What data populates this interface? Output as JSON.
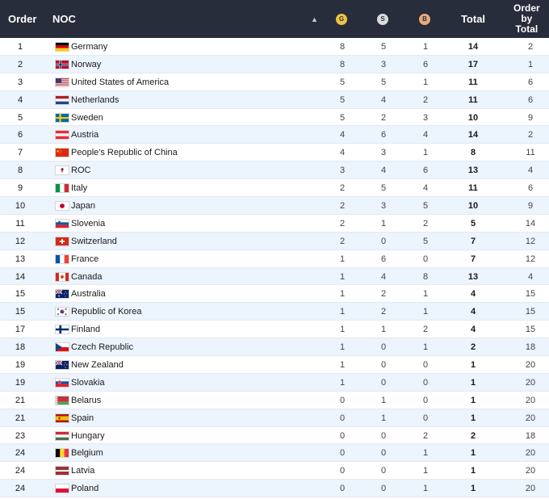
{
  "header": {
    "order": "Order",
    "noc": "NOC",
    "sort_icon": "sort-arrows-icon",
    "gold": "G",
    "silver": "S",
    "bronze": "B",
    "total": "Total",
    "order_by_total_lines": [
      "Order",
      "by",
      "Total"
    ]
  },
  "rows": [
    {
      "order": "1",
      "noc": "Germany",
      "flag": "DE",
      "g": "8",
      "s": "5",
      "b": "1",
      "total": "14",
      "obt": "2"
    },
    {
      "order": "2",
      "noc": "Norway",
      "flag": "NO",
      "g": "8",
      "s": "3",
      "b": "6",
      "total": "17",
      "obt": "1"
    },
    {
      "order": "3",
      "noc": "United States of America",
      "flag": "US",
      "g": "5",
      "s": "5",
      "b": "1",
      "total": "11",
      "obt": "6"
    },
    {
      "order": "4",
      "noc": "Netherlands",
      "flag": "NL",
      "g": "5",
      "s": "4",
      "b": "2",
      "total": "11",
      "obt": "6"
    },
    {
      "order": "5",
      "noc": "Sweden",
      "flag": "SE",
      "g": "5",
      "s": "2",
      "b": "3",
      "total": "10",
      "obt": "9"
    },
    {
      "order": "6",
      "noc": "Austria",
      "flag": "AT",
      "g": "4",
      "s": "6",
      "b": "4",
      "total": "14",
      "obt": "2"
    },
    {
      "order": "7",
      "noc": "People's Republic of China",
      "flag": "CN",
      "g": "4",
      "s": "3",
      "b": "1",
      "total": "8",
      "obt": "11"
    },
    {
      "order": "8",
      "noc": "ROC",
      "flag": "ROC",
      "g": "3",
      "s": "4",
      "b": "6",
      "total": "13",
      "obt": "4"
    },
    {
      "order": "9",
      "noc": "Italy",
      "flag": "IT",
      "g": "2",
      "s": "5",
      "b": "4",
      "total": "11",
      "obt": "6"
    },
    {
      "order": "10",
      "noc": "Japan",
      "flag": "JP",
      "g": "2",
      "s": "3",
      "b": "5",
      "total": "10",
      "obt": "9"
    },
    {
      "order": "11",
      "noc": "Slovenia",
      "flag": "SI",
      "g": "2",
      "s": "1",
      "b": "2",
      "total": "5",
      "obt": "14"
    },
    {
      "order": "12",
      "noc": "Switzerland",
      "flag": "CH",
      "g": "2",
      "s": "0",
      "b": "5",
      "total": "7",
      "obt": "12"
    },
    {
      "order": "13",
      "noc": "France",
      "flag": "FR",
      "g": "1",
      "s": "6",
      "b": "0",
      "total": "7",
      "obt": "12"
    },
    {
      "order": "14",
      "noc": "Canada",
      "flag": "CA",
      "g": "1",
      "s": "4",
      "b": "8",
      "total": "13",
      "obt": "4"
    },
    {
      "order": "15",
      "noc": "Australia",
      "flag": "AU",
      "g": "1",
      "s": "2",
      "b": "1",
      "total": "4",
      "obt": "15"
    },
    {
      "order": "15",
      "noc": "Republic of Korea",
      "flag": "KR",
      "g": "1",
      "s": "2",
      "b": "1",
      "total": "4",
      "obt": "15"
    },
    {
      "order": "17",
      "noc": "Finland",
      "flag": "FI",
      "g": "1",
      "s": "1",
      "b": "2",
      "total": "4",
      "obt": "15"
    },
    {
      "order": "18",
      "noc": "Czech Republic",
      "flag": "CZ",
      "g": "1",
      "s": "0",
      "b": "1",
      "total": "2",
      "obt": "18"
    },
    {
      "order": "19",
      "noc": "New Zealand",
      "flag": "NZ",
      "g": "1",
      "s": "0",
      "b": "0",
      "total": "1",
      "obt": "20"
    },
    {
      "order": "19",
      "noc": "Slovakia",
      "flag": "SK",
      "g": "1",
      "s": "0",
      "b": "0",
      "total": "1",
      "obt": "20"
    },
    {
      "order": "21",
      "noc": "Belarus",
      "flag": "BY",
      "g": "0",
      "s": "1",
      "b": "0",
      "total": "1",
      "obt": "20"
    },
    {
      "order": "21",
      "noc": "Spain",
      "flag": "ES",
      "g": "0",
      "s": "1",
      "b": "0",
      "total": "1",
      "obt": "20"
    },
    {
      "order": "23",
      "noc": "Hungary",
      "flag": "HU",
      "g": "0",
      "s": "0",
      "b": "2",
      "total": "2",
      "obt": "18"
    },
    {
      "order": "24",
      "noc": "Belgium",
      "flag": "BE",
      "g": "0",
      "s": "0",
      "b": "1",
      "total": "1",
      "obt": "20"
    },
    {
      "order": "24",
      "noc": "Latvia",
      "flag": "LV",
      "g": "0",
      "s": "0",
      "b": "1",
      "total": "1",
      "obt": "20"
    },
    {
      "order": "24",
      "noc": "Poland",
      "flag": "PL",
      "g": "0",
      "s": "0",
      "b": "1",
      "total": "1",
      "obt": "20"
    }
  ]
}
